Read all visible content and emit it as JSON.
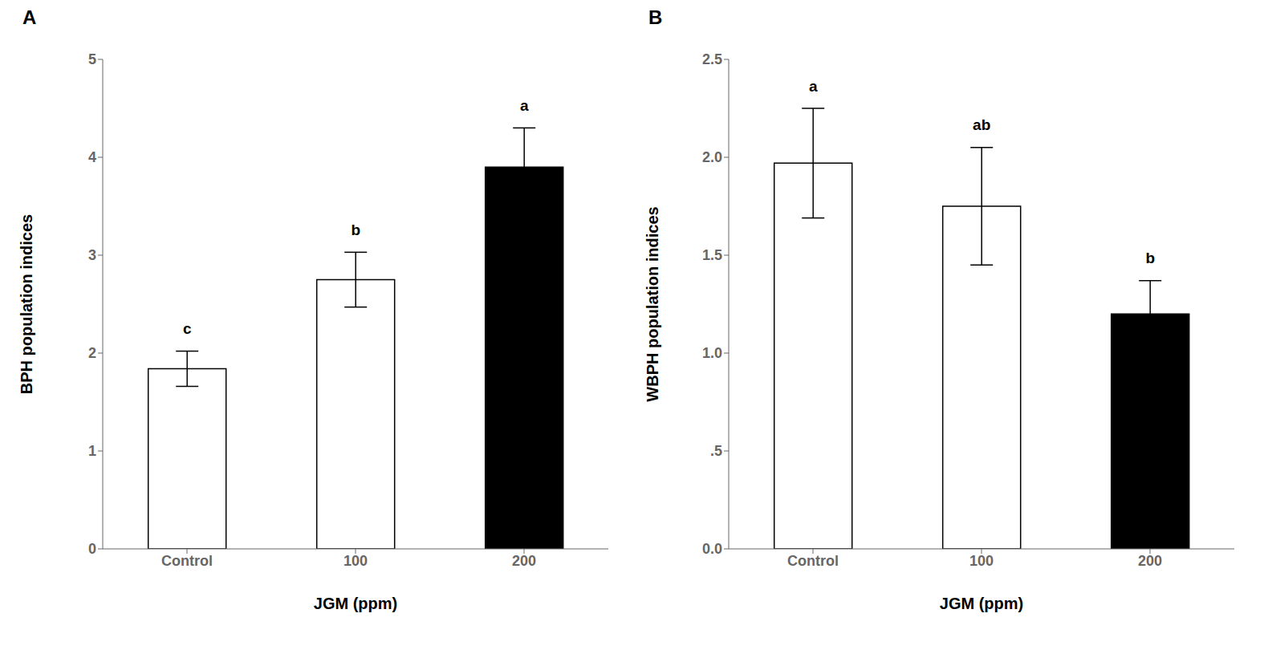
{
  "chart_data": [
    {
      "type": "bar",
      "title": "A",
      "categories": [
        "Control",
        "100",
        "200"
      ],
      "values": [
        1.84,
        2.75,
        3.9
      ],
      "errors": [
        0.18,
        0.28,
        0.4
      ],
      "annotations": [
        "c",
        "b",
        "a"
      ],
      "colors": [
        "#ffffff",
        "#ffffff",
        "#000000"
      ],
      "xlabel": "JGM (ppm)",
      "ylabel": "BPH population indices",
      "ylim": [
        0,
        5
      ],
      "yticks": [
        0,
        1,
        2,
        3,
        4,
        5
      ],
      "grid": false
    },
    {
      "type": "bar",
      "title": "B",
      "categories": [
        "Control",
        "100",
        "200"
      ],
      "values": [
        1.97,
        1.75,
        1.2
      ],
      "errors": [
        0.28,
        0.3,
        0.17
      ],
      "annotations": [
        "a",
        "ab",
        "b"
      ],
      "colors": [
        "#ffffff",
        "#ffffff",
        "#000000"
      ],
      "xlabel": "JGM (ppm)",
      "ylabel": "WBPH population indices",
      "ylim": [
        0,
        2.5
      ],
      "yticks": [
        {
          "value": 0.0,
          "label": "0.0"
        },
        {
          "value": 0.5,
          "label": ".5"
        },
        {
          "value": 1.0,
          "label": "1.0"
        },
        1.5,
        {
          "value": 2.0,
          "label": "2.0"
        },
        2.5
      ],
      "grid": false
    }
  ]
}
